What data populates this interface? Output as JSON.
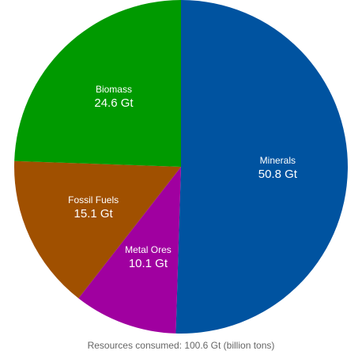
{
  "chart_data": {
    "type": "pie",
    "caption": "Resources consumed: 100.6 Gt (billion tons)",
    "slices": [
      {
        "label": "Minerals",
        "value": 50.8,
        "display": "50.8 Gt",
        "color": "#0053a0"
      },
      {
        "label": "Metal Ores",
        "value": 10.1,
        "display": "10.1 Gt",
        "color": "#a000a0"
      },
      {
        "label": "Fossil Fuels",
        "value": 15.1,
        "display": "15.1 Gt",
        "color": "#a05000"
      },
      {
        "label": "Biomass",
        "value": 24.6,
        "display": "24.6 Gt",
        "color": "#009a00"
      }
    ]
  }
}
